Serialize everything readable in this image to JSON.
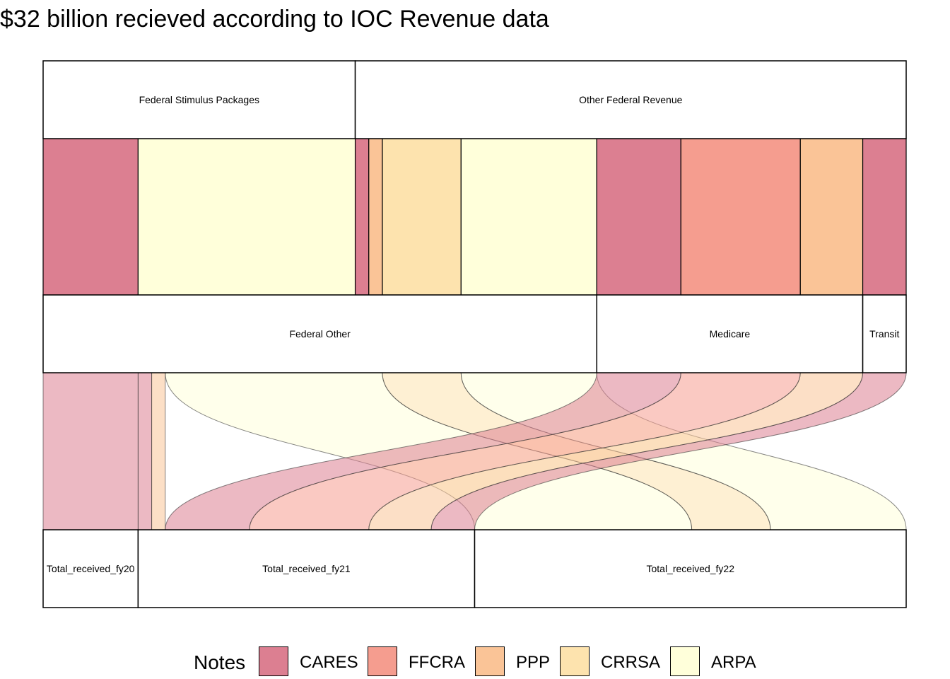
{
  "title": "$32 billion recieved according to IOC Revenue data",
  "chart_data": {
    "type": "alluvial",
    "total_billions": 32,
    "axes": [
      {
        "name": "source",
        "strata": [
          "Federal Stimulus Packages",
          "Other Federal Revenue"
        ]
      },
      {
        "name": "category",
        "strata": [
          "Federal Other",
          "Medicare",
          "Transit"
        ]
      },
      {
        "name": "year",
        "strata": [
          "Total_received_fy20",
          "Total_received_fy21",
          "Total_received_fy22"
        ]
      }
    ],
    "flows": [
      {
        "source": "Federal Stimulus Packages",
        "category": "Federal Other",
        "year": "Total_received_fy20",
        "note": "CARES",
        "value": 3.5
      },
      {
        "source": "Federal Stimulus Packages",
        "category": "Federal Other",
        "year": "Total_received_fy22",
        "note": "ARPA",
        "value": 8.0
      },
      {
        "source": "Other Federal Revenue",
        "category": "Federal Other",
        "year": "Total_received_fy21",
        "note": "CARES",
        "value": 0.5
      },
      {
        "source": "Other Federal Revenue",
        "category": "Federal Other",
        "year": "Total_received_fy21",
        "note": "PPP",
        "value": 0.5
      },
      {
        "source": "Other Federal Revenue",
        "category": "Federal Other",
        "year": "Total_received_fy22",
        "note": "CRRSA",
        "value": 2.9
      },
      {
        "source": "Other Federal Revenue",
        "category": "Federal Other",
        "year": "Total_received_fy22",
        "note": "ARPA",
        "value": 5.0
      },
      {
        "source": "Other Federal Revenue",
        "category": "Medicare",
        "year": "Total_received_fy21",
        "note": "CARES",
        "value": 3.1
      },
      {
        "source": "Other Federal Revenue",
        "category": "Medicare",
        "year": "Total_received_fy21",
        "note": "FFCRA",
        "value": 4.4
      },
      {
        "source": "Other Federal Revenue",
        "category": "Medicare",
        "year": "Total_received_fy21",
        "note": "PPP",
        "value": 2.3
      },
      {
        "source": "Other Federal Revenue",
        "category": "Transit",
        "year": "Total_received_fy21",
        "note": "CARES",
        "value": 1.6
      }
    ]
  },
  "legend": {
    "title": "Notes",
    "items": [
      {
        "label": "CARES",
        "color": "#DC7F91"
      },
      {
        "label": "FFCRA",
        "color": "#F59D8F"
      },
      {
        "label": "PPP",
        "color": "#FAC497"
      },
      {
        "label": "CRRSA",
        "color": "#FDE3AE"
      },
      {
        "label": "ARPA",
        "color": "#FFFFDA"
      }
    ]
  }
}
